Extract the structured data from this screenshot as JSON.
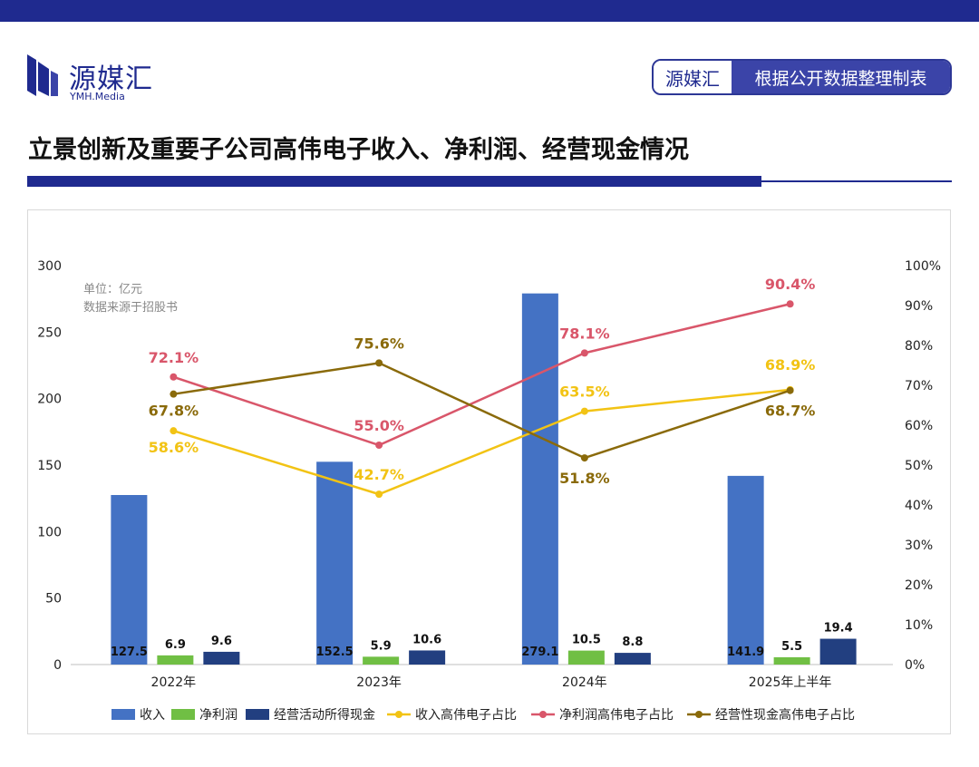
{
  "header": {
    "logo_cn": "源媒汇",
    "logo_en": "YMH.Media",
    "source_brand": "源媒汇",
    "source_text": "根据公开数据整理制表",
    "title": "立景创新及重要子公司高伟电子收入、净利润、经营现金情况"
  },
  "notes": {
    "unit": "单位：亿元",
    "source": "数据来源于招股书"
  },
  "colors": {
    "brand": "#1f2a8f",
    "revenue": "#4472c4",
    "net_profit": "#70bf44",
    "cash": "#223f80",
    "rev_share": "#f2c314",
    "np_share": "#d9566a",
    "cash_share": "#8a6a0a"
  },
  "chart_data": {
    "type": "bar",
    "categories": [
      "2022年",
      "2023年",
      "2024年",
      "2025年上半年"
    ],
    "ylim": [
      0,
      300
    ],
    "yticks": [
      0,
      50,
      100,
      150,
      200,
      250,
      300
    ],
    "y2lim": [
      0,
      100
    ],
    "y2ticks": [
      "0%",
      "10%",
      "20%",
      "30%",
      "40%",
      "50%",
      "60%",
      "70%",
      "80%",
      "90%",
      "100%"
    ],
    "bar_series": [
      {
        "name": "收入",
        "values": [
          127.5,
          152.5,
          279.1,
          141.9
        ],
        "labels": [
          "127.5",
          "152.5",
          "279.1",
          "141.9"
        ]
      },
      {
        "name": "净利润",
        "values": [
          6.9,
          5.9,
          10.5,
          5.5
        ],
        "labels": [
          "6.9",
          "5.9",
          "10.5",
          "5.5"
        ]
      },
      {
        "name": "经营活动所得现金",
        "values": [
          9.6,
          10.6,
          8.8,
          19.4
        ],
        "labels": [
          "9.6",
          "10.6",
          "8.8",
          "19.4"
        ]
      }
    ],
    "line_series": [
      {
        "name": "收入高伟电子占比",
        "values": [
          58.6,
          42.7,
          63.5,
          68.9
        ],
        "labels": [
          "58.6%",
          "42.7%",
          "63.5%",
          "68.9%"
        ]
      },
      {
        "name": "净利润高伟电子占比",
        "values": [
          72.1,
          55.0,
          78.1,
          90.4
        ],
        "labels": [
          "72.1%",
          "55.0%",
          "78.1%",
          "90.4%"
        ]
      },
      {
        "name": "经营性现金高伟电子占比",
        "values": [
          67.8,
          75.6,
          51.8,
          68.7
        ],
        "labels": [
          "67.8%",
          "75.6%",
          "51.8%",
          "68.7%"
        ]
      }
    ],
    "legend": [
      "收入",
      "净利润",
      "经营活动所得现金",
      "收入高伟电子占比",
      "净利润高伟电子占比",
      "经营性现金高伟电子占比"
    ],
    "legend_position": "bottom",
    "grid": false
  }
}
